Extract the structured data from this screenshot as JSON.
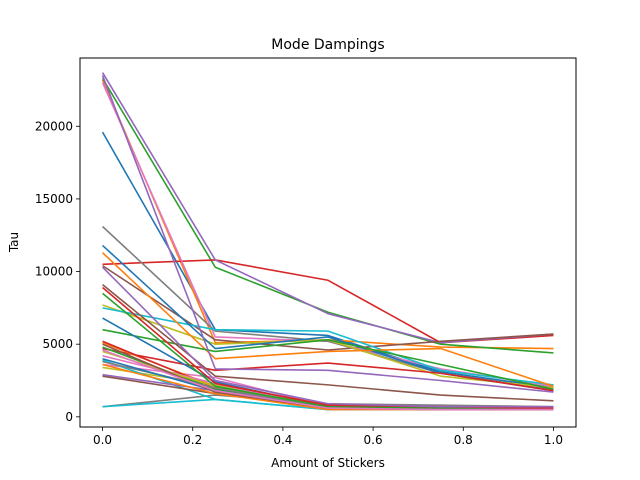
{
  "chart_data": {
    "type": "line",
    "title": "Mode Dampings",
    "xlabel": "Amount of Stickers",
    "ylabel": "Tau",
    "xlim": [
      -0.05,
      1.05
    ],
    "ylim": [
      -700,
      24700
    ],
    "xticks": [
      0.0,
      0.2,
      0.4,
      0.6,
      0.8,
      1.0
    ],
    "xtick_labels": [
      "0.0",
      "0.2",
      "0.4",
      "0.6",
      "0.8",
      "1.0"
    ],
    "yticks": [
      0,
      5000,
      10000,
      15000,
      20000
    ],
    "ytick_labels": [
      "0",
      "5000",
      "10000",
      "15000",
      "20000"
    ],
    "grid": false,
    "legend": "none",
    "x": [
      0.0,
      0.25,
      0.5,
      0.75,
      1.0
    ],
    "series": [
      {
        "color": "#1f77b4",
        "values": [
          19600,
          6000,
          5600,
          3100,
          2000
        ]
      },
      {
        "color": "#ff7f0e",
        "values": [
          23200,
          5100,
          5300,
          4800,
          4700
        ]
      },
      {
        "color": "#2ca02c",
        "values": [
          23300,
          10300,
          7200,
          5000,
          4400
        ]
      },
      {
        "color": "#d62728",
        "values": [
          10500,
          10800,
          9400,
          5100,
          5600
        ]
      },
      {
        "color": "#9467bd",
        "values": [
          23700,
          10800,
          7100,
          5100,
          5700
        ]
      },
      {
        "color": "#8c564b",
        "values": [
          10400,
          5300,
          4600,
          5200,
          5700
        ]
      },
      {
        "color": "#e377c2",
        "values": [
          23000,
          5500,
          5200,
          3300,
          2100
        ]
      },
      {
        "color": "#7f7f7f",
        "values": [
          13100,
          5900,
          5200,
          3000,
          1900
        ]
      },
      {
        "color": "#bcbd22",
        "values": [
          7700,
          5000,
          5300,
          2800,
          2000
        ]
      },
      {
        "color": "#17becf",
        "values": [
          7500,
          6000,
          5900,
          3200,
          2200
        ]
      },
      {
        "color": "#1f77b4",
        "values": [
          11800,
          4700,
          5500,
          3000,
          1800
        ]
      },
      {
        "color": "#ff7f0e",
        "values": [
          11300,
          4000,
          4500,
          4700,
          2100
        ]
      },
      {
        "color": "#2ca02c",
        "values": [
          6000,
          4500,
          5300,
          3600,
          1900
        ]
      },
      {
        "color": "#d62728",
        "values": [
          4700,
          3200,
          3700,
          3000,
          1800
        ]
      },
      {
        "color": "#9467bd",
        "values": [
          23500,
          3300,
          3200,
          2500,
          1700
        ]
      },
      {
        "color": "#8c564b",
        "values": [
          9100,
          2800,
          2200,
          1500,
          1100
        ]
      },
      {
        "color": "#e377c2",
        "values": [
          3600,
          2700,
          700,
          800,
          500
        ]
      },
      {
        "color": "#7f7f7f",
        "values": [
          700,
          1500,
          900,
          800,
          700
        ]
      },
      {
        "color": "#bcbd22",
        "values": [
          3400,
          2200,
          800,
          700,
          600
        ]
      },
      {
        "color": "#17becf",
        "values": [
          3900,
          1200,
          500,
          600,
          500
        ]
      },
      {
        "color": "#1f77b4",
        "values": [
          6800,
          2400,
          700,
          600,
          500
        ]
      },
      {
        "color": "#ff7f0e",
        "values": [
          5100,
          2100,
          600,
          700,
          600
        ]
      },
      {
        "color": "#2ca02c",
        "values": [
          4800,
          1900,
          700,
          600,
          600
        ]
      },
      {
        "color": "#d62728",
        "values": [
          5200,
          2000,
          800,
          600,
          600
        ]
      },
      {
        "color": "#9467bd",
        "values": [
          2900,
          1800,
          700,
          600,
          600
        ]
      },
      {
        "color": "#8c564b",
        "values": [
          2800,
          1600,
          600,
          600,
          500
        ]
      },
      {
        "color": "#e377c2",
        "values": [
          4200,
          2300,
          600,
          500,
          500
        ]
      },
      {
        "color": "#7f7f7f",
        "values": [
          3800,
          2000,
          600,
          600,
          500
        ]
      },
      {
        "color": "#bcbd22",
        "values": [
          4500,
          2100,
          700,
          600,
          600
        ]
      },
      {
        "color": "#17becf",
        "values": [
          700,
          1200,
          500,
          500,
          500
        ]
      },
      {
        "color": "#1f77b4",
        "values": [
          4000,
          1800,
          600,
          500,
          500
        ]
      },
      {
        "color": "#ff7f0e",
        "values": [
          3600,
          1600,
          500,
          500,
          500
        ]
      },
      {
        "color": "#2ca02c",
        "values": [
          8500,
          2100,
          700,
          600,
          600
        ]
      },
      {
        "color": "#d62728",
        "values": [
          8900,
          2300,
          800,
          700,
          600
        ]
      },
      {
        "color": "#9467bd",
        "values": [
          10300,
          2500,
          900,
          700,
          700
        ]
      },
      {
        "color": "#8c564b",
        "values": [
          5000,
          1700,
          600,
          500,
          500
        ]
      },
      {
        "color": "#e377c2",
        "values": [
          4600,
          1800,
          600,
          500,
          500
        ]
      }
    ]
  }
}
